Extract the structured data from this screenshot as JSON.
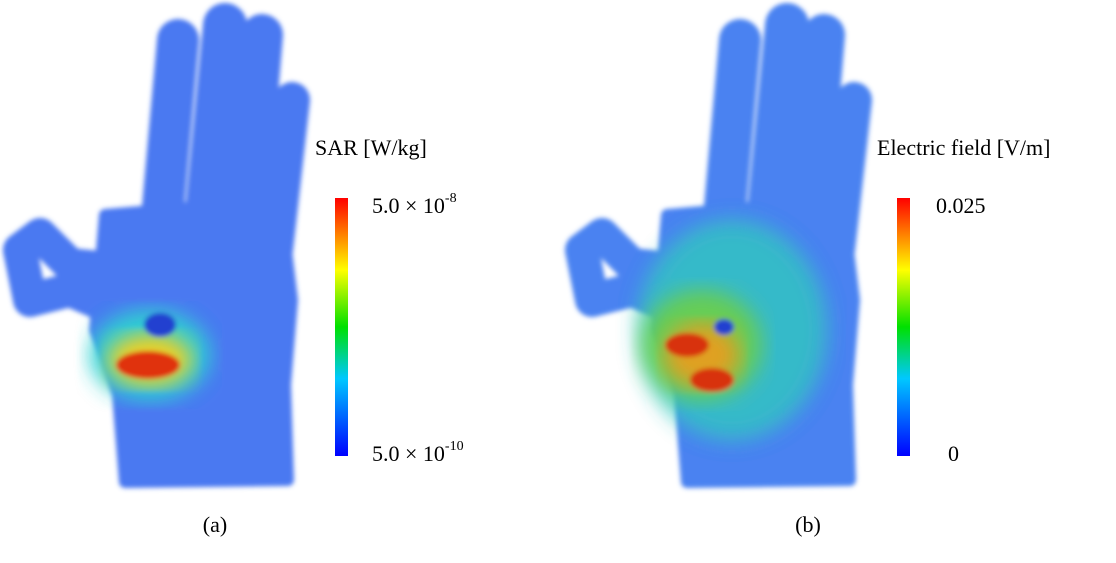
{
  "panels": [
    {
      "colorbar_title": "SAR [W/kg]",
      "max_label": {
        "mantissa": "5.0 × 10",
        "exponent": "-8"
      },
      "min_label": {
        "mantissa": "5.0 × 10",
        "exponent": "-10"
      },
      "caption": "(a)"
    },
    {
      "colorbar_title": "Electric field [V/m]",
      "max_label": {
        "mantissa": "0.025",
        "exponent": ""
      },
      "min_label": {
        "mantissa": "0",
        "exponent": ""
      },
      "caption": "(b)"
    }
  ]
}
